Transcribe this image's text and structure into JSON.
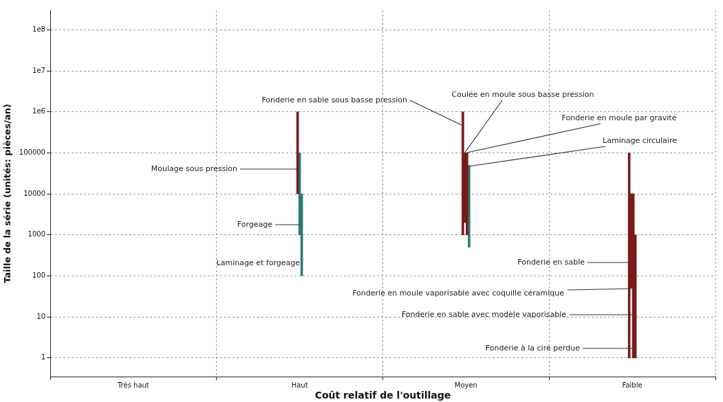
{
  "chart_data": {
    "type": "bar",
    "xlabel": "Coût relatif de l'outillage",
    "ylabel": "Taille de la série (unités: pièces/an)",
    "categories": [
      "Très haut",
      "Haut",
      "Moyen",
      "Faible"
    ],
    "ylim": [
      0.35,
      300000000
    ],
    "log": "y",
    "yticks": [
      1,
      10,
      100,
      1000,
      10000,
      100000,
      {
        "value": 1000000,
        "label": "1e6"
      },
      {
        "value": 10000000,
        "label": "1e7"
      },
      {
        "value": 100000000,
        "label": "1e8"
      }
    ],
    "grid": true,
    "series": [
      {
        "name": "Moulage sous pression",
        "color": "#7a1a1a",
        "base": [
          null,
          10000,
          null,
          null
        ],
        "values": [
          null,
          990000,
          null,
          null
        ]
      },
      {
        "name": "Forgeage",
        "color": "#2e7b78",
        "base": [
          null,
          1000,
          null,
          null
        ],
        "values": [
          null,
          99000,
          null,
          null
        ]
      },
      {
        "name": "Laminage et forgeage",
        "color": "#2e7b78",
        "base": [
          null,
          100,
          null,
          null
        ],
        "values": [
          null,
          9900,
          null,
          null
        ]
      },
      {
        "name": "Fonderie en sable sous basse pression",
        "color": "#7a1a1a",
        "base": [
          null,
          null,
          1000,
          null
        ],
        "values": [
          null,
          null,
          999000,
          null
        ]
      },
      {
        "name": "Coulée en moule sous basse pression",
        "color": "#7a1a1a",
        "base": [
          null,
          null,
          2000,
          null
        ],
        "values": [
          null,
          null,
          98000,
          null
        ]
      },
      {
        "name": "Fonderie en moule par gravité",
        "color": "#7a1a1a",
        "base": [
          null,
          null,
          1000,
          null
        ],
        "values": [
          null,
          null,
          99000,
          null
        ]
      },
      {
        "name": "Laminage circulaire",
        "color": "#2e7b78",
        "base": [
          null,
          null,
          500,
          null
        ],
        "values": [
          null,
          null,
          49500,
          null
        ]
      },
      {
        "name": "Fonderie en sable",
        "color": "#7a1a1a",
        "base": [
          null,
          null,
          null,
          1
        ],
        "values": [
          null,
          null,
          null,
          99999
        ]
      },
      {
        "name": "Fonderie en moule vaporisable avec coquille céramique",
        "color": "#7a1a1a",
        "base": [
          null,
          null,
          null,
          50
        ],
        "values": [
          null,
          null,
          null,
          9950
        ]
      },
      {
        "name": "Fonderie à la cire perdue",
        "color": "#7a1a1a",
        "base": [
          null,
          null,
          null,
          1
        ],
        "values": [
          null,
          null,
          null,
          9999
        ]
      },
      {
        "name": "Fonderie en sable avec modèle vaporisable",
        "color": "#7a1a1a",
        "base": [
          null,
          null,
          null,
          1
        ],
        "values": [
          null,
          null,
          null,
          999
        ]
      }
    ]
  }
}
